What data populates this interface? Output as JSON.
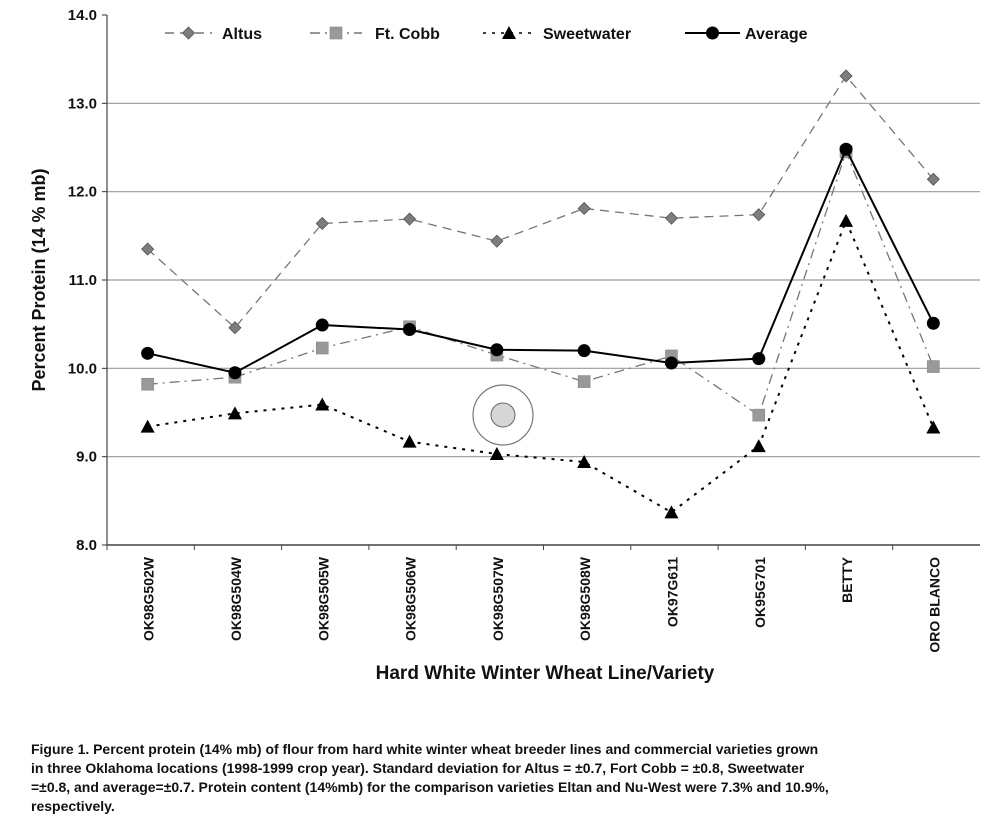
{
  "chart_data": {
    "type": "line",
    "title": "",
    "xlabel": "Hard White Winter Wheat Line/Variety",
    "ylabel": "Percent Protein (14 % mb)",
    "ylim": [
      8.0,
      14.0
    ],
    "yticks": [
      "8.0",
      "9.0",
      "10.0",
      "11.0",
      "12.0",
      "13.0",
      "14.0"
    ],
    "grid": "horizontal",
    "legend": "top",
    "categories": [
      "OK98G502W",
      "OK98G504W",
      "OK98G505W",
      "OK98G506W",
      "OK98G507W",
      "OK98G508W",
      "OK97G611",
      "OK95G701",
      "BETTY",
      "ORO BLANCO"
    ],
    "series": [
      {
        "name": "Altus",
        "marker": "diamond",
        "line": "dashed",
        "color": "#8a8a8a",
        "values": [
          11.35,
          10.46,
          11.64,
          11.69,
          11.44,
          11.81,
          11.7,
          11.74,
          13.31,
          12.14
        ]
      },
      {
        "name": "Ft. Cobb",
        "marker": "square",
        "line": "dash-dot",
        "color": "#9a9a9a",
        "values": [
          9.82,
          9.9,
          10.23,
          10.47,
          10.15,
          9.85,
          10.14,
          9.47,
          12.45,
          10.02
        ]
      },
      {
        "name": "Sweetwater",
        "marker": "triangle",
        "line": "dotted",
        "color": "#000000",
        "values": [
          9.34,
          9.49,
          9.59,
          9.17,
          9.03,
          8.94,
          8.37,
          9.12,
          11.67,
          9.33
        ]
      },
      {
        "name": "Average",
        "marker": "circle",
        "line": "solid",
        "color": "#000000",
        "values": [
          10.17,
          9.95,
          10.49,
          10.44,
          10.21,
          10.2,
          10.06,
          10.11,
          12.48,
          10.51
        ]
      }
    ]
  },
  "caption": {
    "lines": [
      "Figure 1.  Percent protein (14% mb) of flour from hard white winter wheat breeder lines and commercial varieties grown",
      "in three Oklahoma locations (1998-1999 crop year).  Standard deviation for Altus = ±0.7, Fort Cobb = ±0.8, Sweetwater",
      "=±0.8, and average=±0.7. Protein content (14%mb) for the comparison varieties Eltan and Nu-West were 7.3% and 10.9%,",
      "respectively."
    ]
  }
}
